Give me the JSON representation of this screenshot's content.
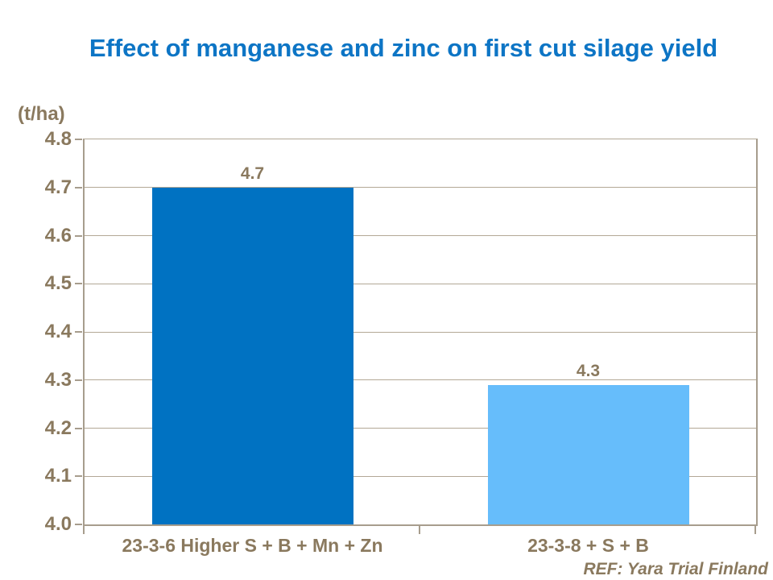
{
  "title": "Effect of manganese and zinc on first cut silage yield",
  "reference": "REF: Yara Trial Finland",
  "colors": {
    "title_blue": "#0d75c5",
    "axis_text_tan": "#8a795e",
    "gridline": "#b3a896",
    "axis_border": "#a79d8d",
    "bar_colors": [
      "#0072c2",
      "#66bdfb"
    ],
    "background": "#ffffff"
  },
  "chart_data": {
    "type": "bar",
    "title": "Effect of manganese and zinc on first cut silage yield",
    "ylabel": "(t/ha)",
    "xlabel": "",
    "categories": [
      "23-3-6 Higher S + B + Mn + Zn",
      "23-3-8 + S + B"
    ],
    "values": [
      4.7,
      4.29
    ],
    "data_labels": [
      "4.7",
      "4.3"
    ],
    "ylim": [
      4.0,
      4.8
    ],
    "ytick_step": 0.1,
    "ytick_labels": [
      "4.0",
      "4.1",
      "4.2",
      "4.3",
      "4.4",
      "4.5",
      "4.6",
      "4.7",
      "4.8"
    ],
    "grid": true,
    "legend": false,
    "annotation": "REF: Yara Trial Finland"
  }
}
